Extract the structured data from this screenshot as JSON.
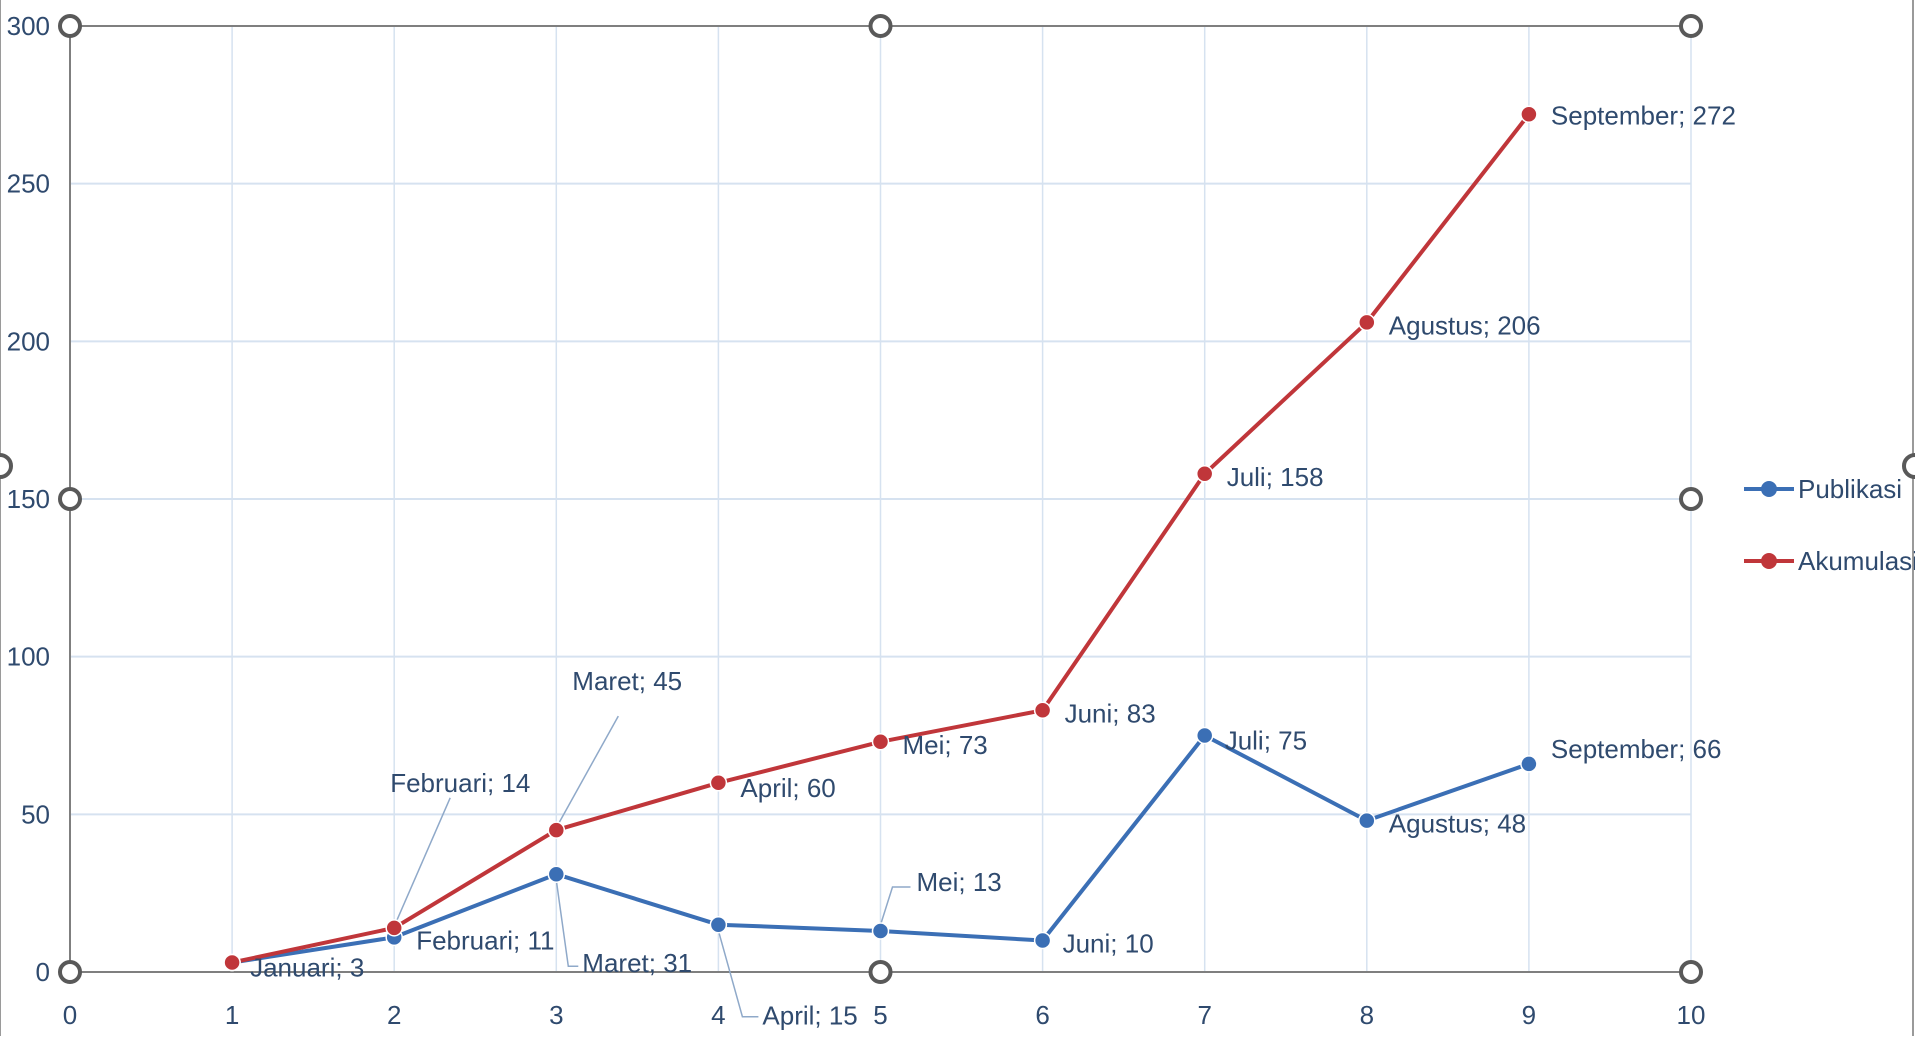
{
  "chart_data": {
    "type": "scatter",
    "xlim": [
      0,
      10
    ],
    "ylim": [
      0,
      300
    ],
    "x_ticks": [
      "0",
      "1",
      "2",
      "3",
      "4",
      "5",
      "6",
      "7",
      "8",
      "9",
      "10"
    ],
    "y_ticks": [
      "0",
      "50",
      "100",
      "150",
      "200",
      "250",
      "300"
    ],
    "grid": true,
    "legend_position": "right",
    "series": [
      {
        "name": "Publikasi",
        "color": "#3b6fb5",
        "x": [
          1,
          2,
          3,
          4,
          5,
          6,
          7,
          8,
          9
        ],
        "values": [
          3,
          11,
          31,
          15,
          13,
          10,
          75,
          48,
          66
        ],
        "labels": [
          "Januari; 3",
          "Februari; 11",
          "Maret; 31",
          "April; 15",
          "Mei; 13",
          "Juni; 10",
          "Juli; 75",
          "Agustus; 48",
          "September; 66"
        ]
      },
      {
        "name": "Akumulasi",
        "color": "#c0363a",
        "x": [
          1,
          2,
          3,
          4,
          5,
          6,
          7,
          8,
          9
        ],
        "values": [
          3,
          14,
          45,
          60,
          73,
          83,
          158,
          206,
          272
        ],
        "labels": [
          "",
          "Februari; 14",
          "Maret; 45",
          "April; 60",
          "Mei; 73",
          "Juni; 83",
          "Juli; 158",
          "Agustus; 206",
          "September; 272"
        ]
      }
    ]
  },
  "colors": {
    "grid": "#d6e2f0",
    "axis": "#7f7f7f",
    "tick_text": "#2f4a6e",
    "handle": "#595959"
  }
}
